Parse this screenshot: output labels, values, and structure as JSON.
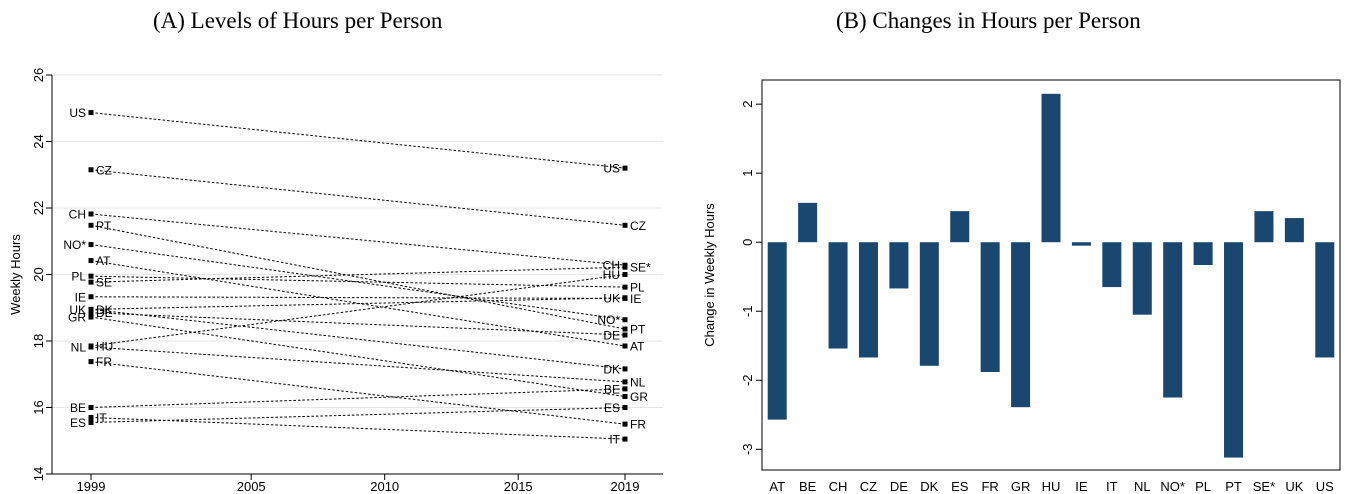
{
  "panels": {
    "a": {
      "title": "(A) Levels of Hours per Person"
    },
    "b": {
      "title": "(B) Changes in Hours per Person"
    }
  },
  "chart_data": [
    {
      "type": "line",
      "title": "(A) Levels of Hours per Person",
      "xlabel": "",
      "ylabel": "Weekly Hours",
      "xlim": [
        1999,
        2019
      ],
      "ylim": [
        14,
        26
      ],
      "xticks": [
        1999,
        2005,
        2010,
        2015,
        2019
      ],
      "yticks": [
        14,
        16,
        18,
        20,
        22,
        24,
        26
      ],
      "grid": "horizontal",
      "style": "dashed slope lines with square markers",
      "color": "#000000",
      "series": [
        {
          "name": "US",
          "values": [
            24.87,
            23.2
          ]
        },
        {
          "name": "CZ",
          "values": [
            23.15,
            21.48
          ]
        },
        {
          "name": "CH",
          "values": [
            21.82,
            20.28
          ]
        },
        {
          "name": "PT",
          "values": [
            21.48,
            18.36
          ]
        },
        {
          "name": "NO*",
          "values": [
            20.9,
            18.64
          ]
        },
        {
          "name": "AT",
          "values": [
            20.42,
            17.85
          ]
        },
        {
          "name": "PL",
          "values": [
            19.95,
            19.62
          ]
        },
        {
          "name": "SE*",
          "values": [
            19.77,
            20.22
          ]
        },
        {
          "name": "IE",
          "values": [
            19.33,
            19.28
          ]
        },
        {
          "name": "UK",
          "values": [
            18.95,
            19.3
          ]
        },
        {
          "name": "DK",
          "values": [
            18.95,
            17.16
          ]
        },
        {
          "name": "GR",
          "values": [
            18.72,
            16.33
          ]
        },
        {
          "name": "DE",
          "values": [
            18.85,
            18.18
          ]
        },
        {
          "name": "NL",
          "values": [
            17.82,
            16.77
          ]
        },
        {
          "name": "HU",
          "values": [
            17.85,
            20.0
          ]
        },
        {
          "name": "FR",
          "values": [
            17.38,
            15.5
          ]
        },
        {
          "name": "BE",
          "values": [
            16.0,
            16.56
          ]
        },
        {
          "name": "IT",
          "values": [
            15.7,
            15.05
          ]
        },
        {
          "name": "ES",
          "values": [
            15.55,
            16.0
          ]
        }
      ],
      "labels_1999": [
        {
          "text": "US",
          "side": "left"
        },
        {
          "text": "CZ",
          "side": "right"
        },
        {
          "text": "CH",
          "side": "left"
        },
        {
          "text": "PT",
          "side": "right"
        },
        {
          "text": "NO*",
          "side": "left"
        },
        {
          "text": "AT",
          "side": "right"
        },
        {
          "text": "PL",
          "side": "left"
        },
        {
          "text": "SE",
          "side": "right"
        },
        {
          "text": "IE",
          "side": "left"
        },
        {
          "text": "UK",
          "side": "left"
        },
        {
          "text": "DK",
          "side": "right"
        },
        {
          "text": "GR",
          "side": "left"
        },
        {
          "text": "DE",
          "side": "right"
        },
        {
          "text": "NL",
          "side": "left"
        },
        {
          "text": "HU",
          "side": "right"
        },
        {
          "text": "FR",
          "side": "right"
        },
        {
          "text": "BE",
          "side": "left"
        },
        {
          "text": "IT",
          "side": "right"
        },
        {
          "text": "ES",
          "side": "left"
        }
      ],
      "labels_2019": [
        {
          "text": "US",
          "side": "left"
        },
        {
          "text": "CZ",
          "side": "right"
        },
        {
          "text": "CH",
          "side": "left"
        },
        {
          "text": "SE*",
          "side": "right"
        },
        {
          "text": "HU",
          "side": "left"
        },
        {
          "text": "PL",
          "side": "right"
        },
        {
          "text": "UK",
          "side": "left"
        },
        {
          "text": "IE",
          "side": "right"
        },
        {
          "text": "NO*",
          "side": "left"
        },
        {
          "text": "PT",
          "side": "right"
        },
        {
          "text": "DE",
          "side": "left"
        },
        {
          "text": "AT",
          "side": "right"
        },
        {
          "text": "DK",
          "side": "left"
        },
        {
          "text": "NL",
          "side": "right"
        },
        {
          "text": "BE",
          "side": "left"
        },
        {
          "text": "GR",
          "side": "right"
        },
        {
          "text": "ES",
          "side": "left"
        },
        {
          "text": "FR",
          "side": "right"
        },
        {
          "text": "IT",
          "side": "left"
        }
      ]
    },
    {
      "type": "bar",
      "title": "(B) Changes in Hours per Person",
      "xlabel": "",
      "ylabel": "Change in Weekly Hours",
      "ylim": [
        -3.3,
        2.35
      ],
      "yticks": [
        -3,
        -2,
        -1,
        0,
        1,
        2
      ],
      "ytick_labels": [
        "-3",
        "-2",
        "-1",
        "0",
        "1",
        "2"
      ],
      "grid": false,
      "color": "#1a476f",
      "categories": [
        "AT",
        "BE",
        "CH",
        "CZ",
        "DE",
        "DK",
        "ES",
        "FR",
        "GR",
        "HU",
        "IE",
        "IT",
        "NL",
        "NO*",
        "PL",
        "PT",
        "SE*",
        "UK",
        "US"
      ],
      "values": [
        -2.57,
        0.57,
        -1.54,
        -1.67,
        -0.67,
        -1.79,
        0.45,
        -1.88,
        -2.39,
        2.15,
        -0.05,
        -0.65,
        -1.05,
        -2.25,
        -0.33,
        -3.12,
        0.45,
        0.35,
        -1.67
      ]
    }
  ]
}
